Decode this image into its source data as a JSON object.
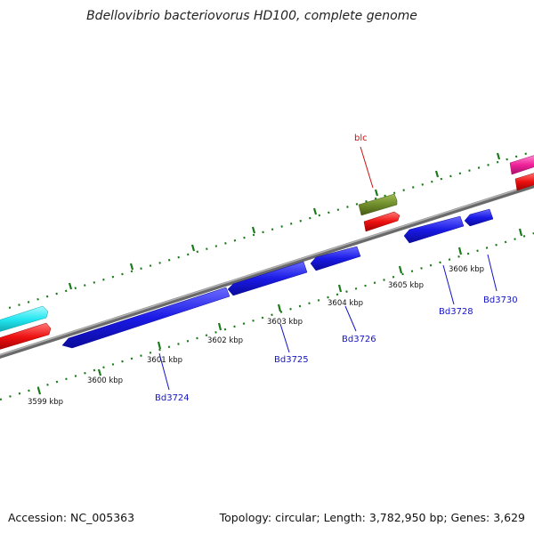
{
  "title": "Bdellovibrio bacteriovorus HD100, complete genome",
  "accession_text": "Accession: NC_005363",
  "summary_text": "Topology: circular; Length: 3,782,950 bp; Genes: 3,629",
  "kbp_labels": [
    "3599 kbp",
    "3600 kbp",
    "3601 kbp",
    "3602 kbp",
    "3603 kbp",
    "3604 kbp",
    "3605 kbp",
    "3606 kbp"
  ],
  "gene_labels": [
    "Bd3724",
    "Bd3725",
    "Bd3726",
    "Bd3728",
    "Bd3730"
  ],
  "feature_labels": [
    "blc"
  ],
  "colors": {
    "backbone": "#8c8c8c",
    "tick": "#1a7a1a",
    "cds_blue": "#1a1ae6",
    "gene_red": "#ee1111",
    "cyan": "#22e6f0",
    "olive": "#6f8c2a",
    "magenta": "#f0239c",
    "gene_label": "#1414c8",
    "feature_label": "#cc1111"
  }
}
